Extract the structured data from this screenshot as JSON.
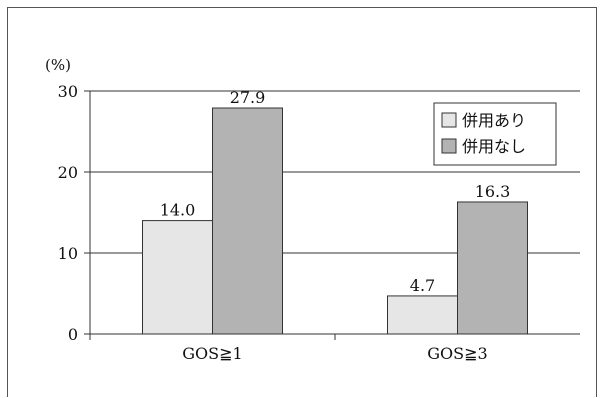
{
  "chart_data": {
    "type": "bar",
    "y_unit_label": "(%)",
    "categories": [
      "GOS≧1",
      "GOS≧3"
    ],
    "series": [
      {
        "name": "併用あり",
        "values": [
          14.0,
          4.7
        ],
        "value_labels": [
          "14.0",
          "4.7"
        ],
        "color": "#e6e6e6"
      },
      {
        "name": "併用なし",
        "values": [
          27.9,
          16.3
        ],
        "value_labels": [
          "27.9",
          "16.3"
        ],
        "color": "#b3b3b3"
      }
    ],
    "ylim": [
      0,
      30
    ],
    "yticks": [
      0,
      10,
      20,
      30
    ],
    "ytick_labels": [
      "0",
      "10",
      "20",
      "30"
    ],
    "grid": true,
    "legend_position": "top-right"
  }
}
